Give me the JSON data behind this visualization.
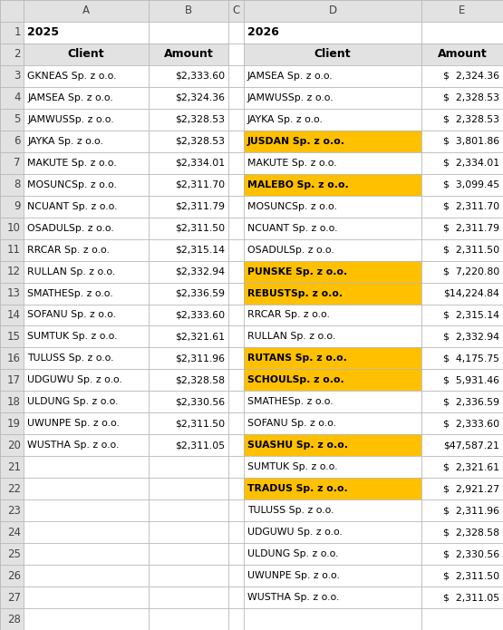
{
  "col_headers": [
    "A",
    "B",
    "C",
    "D",
    "E"
  ],
  "year_2025": "2025",
  "year_2026": "2026",
  "header_client": "Client",
  "header_amount": "Amount",
  "left_data": [
    [
      "GKNEAS Sp. z o.o.",
      "$2,333.60"
    ],
    [
      "JAMSEA Sp. z o.o.",
      "$2,324.36"
    ],
    [
      "JAMWUSSp. z o.o.",
      "$2,328.53"
    ],
    [
      "JAYKA Sp. z o.o.",
      "$2,328.53"
    ],
    [
      "MAKUTE Sp. z o.o.",
      "$2,334.01"
    ],
    [
      "MOSUNCSp. z o.o.",
      "$2,311.70"
    ],
    [
      "NCUANT Sp. z o.o.",
      "$2,311.79"
    ],
    [
      "OSADULSp. z o.o.",
      "$2,311.50"
    ],
    [
      "RRCAR Sp. z o.o.",
      "$2,315.14"
    ],
    [
      "RULLAN Sp. z o.o.",
      "$2,332.94"
    ],
    [
      "SMATHESp. z o.o.",
      "$2,336.59"
    ],
    [
      "SOFANU Sp. z o.o.",
      "$2,333.60"
    ],
    [
      "SUMTUK Sp. z o.o.",
      "$2,321.61"
    ],
    [
      "TULUSS Sp. z o.o.",
      "$2,311.96"
    ],
    [
      "UDGUWU Sp. z o.o.",
      "$2,328.58"
    ],
    [
      "ULDUNG Sp. z o.o.",
      "$2,330.56"
    ],
    [
      "UWUNPE Sp. z o.o.",
      "$2,311.50"
    ],
    [
      "WUSTHA Sp. z o.o.",
      "$2,311.05"
    ]
  ],
  "right_data": [
    [
      "JAMSEA Sp. z o.o.",
      "$  2,324.36",
      false
    ],
    [
      "JAMWUSSp. z o.o.",
      "$  2,328.53",
      false
    ],
    [
      "JAYKA Sp. z o.o.",
      "$  2,328.53",
      false
    ],
    [
      "JUSDAN Sp. z o.o.",
      "$  3,801.86",
      true
    ],
    [
      "MAKUTE Sp. z o.o.",
      "$  2,334.01",
      false
    ],
    [
      "MALEBO Sp. z o.o.",
      "$  3,099.45",
      true
    ],
    [
      "MOSUNCSp. z o.o.",
      "$  2,311.70",
      false
    ],
    [
      "NCUANT Sp. z o.o.",
      "$  2,311.79",
      false
    ],
    [
      "OSADULSp. z o.o.",
      "$  2,311.50",
      false
    ],
    [
      "PUNSKE Sp. z o.o.",
      "$  7,220.80",
      true
    ],
    [
      "REBUSTSp. z o.o.",
      "$14,224.84",
      true
    ],
    [
      "RRCAR Sp. z o.o.",
      "$  2,315.14",
      false
    ],
    [
      "RULLAN Sp. z o.o.",
      "$  2,332.94",
      false
    ],
    [
      "RUTANS Sp. z o.o.",
      "$  4,175.75",
      true
    ],
    [
      "SCHOULSp. z o.o.",
      "$  5,931.46",
      true
    ],
    [
      "SMATHESp. z o.o.",
      "$  2,336.59",
      false
    ],
    [
      "SOFANU Sp. z o.o.",
      "$  2,333.60",
      false
    ],
    [
      "SUASHU Sp. z o.o.",
      "$47,587.21",
      true
    ],
    [
      "SUMTUK Sp. z o.o.",
      "$  2,321.61",
      false
    ],
    [
      "TRADUS Sp. z o.o.",
      "$  2,921.27",
      true
    ],
    [
      "TULUSS Sp. z o.o.",
      "$  2,311.96",
      false
    ],
    [
      "UDGUWU Sp. z o.o.",
      "$  2,328.58",
      false
    ],
    [
      "ULDUNG Sp. z o.o.",
      "$  2,330.56",
      false
    ],
    [
      "UWUNPE Sp. z o.o.",
      "$  2,311.50",
      false
    ],
    [
      "WUSTHA Sp. z o.o.",
      "$  2,311.05",
      false
    ]
  ],
  "bg_color": "#ffffff",
  "header_col_bg": "#e2e2e2",
  "highlight_color": "#FFC000",
  "grid_color": "#b8b8b8",
  "figw": 5.55,
  "figh": 6.95,
  "dpi": 100,
  "total_rows": 29,
  "col_header_fontsize": 8.5,
  "data_fontsize": 7.8,
  "bold_header_fontsize": 9.0
}
